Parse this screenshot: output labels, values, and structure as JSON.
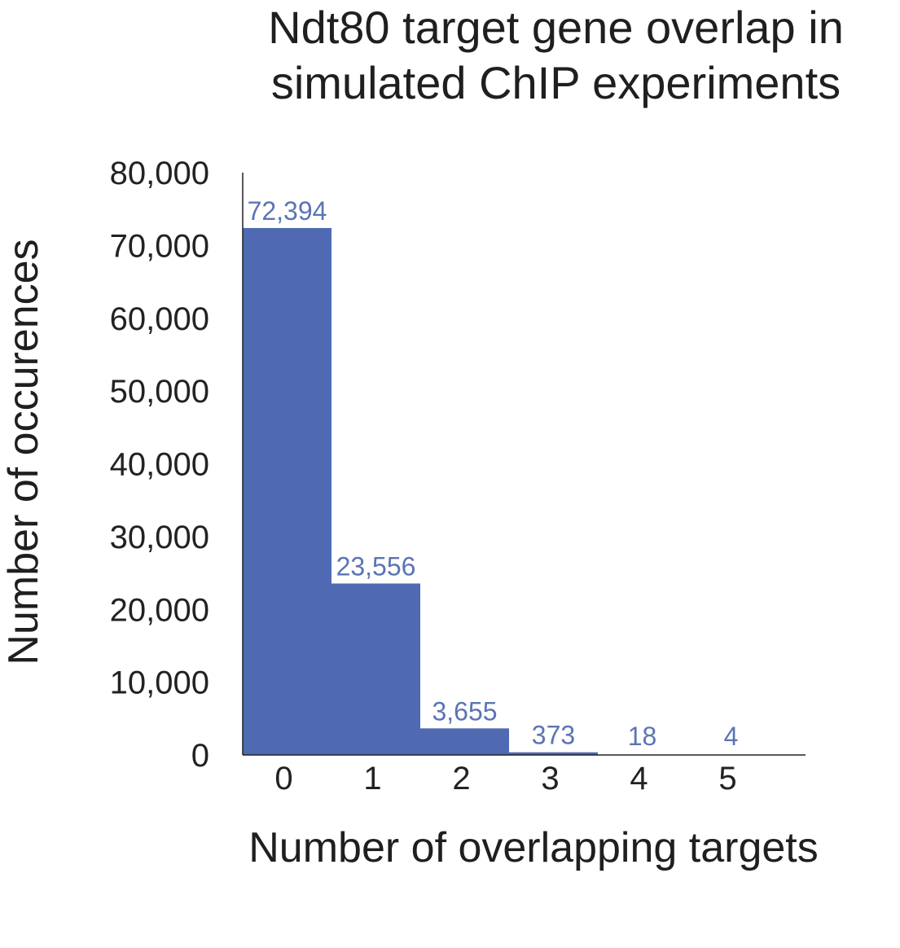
{
  "chart_data": {
    "type": "bar",
    "title": [
      "Ndt80 target gene overlap in",
      "simulated ChIP experiments"
    ],
    "xlabel": "Number of overlapping targets",
    "ylabel": "Number of occurences",
    "categories": [
      "0",
      "1",
      "2",
      "3",
      "4",
      "5"
    ],
    "values": [
      72394,
      23556,
      3655,
      373,
      18,
      4
    ],
    "value_labels": [
      "72,394",
      "23,556",
      "3,655",
      "373",
      "18",
      "4"
    ],
    "ylim": [
      0,
      80000
    ],
    "yticks": [
      0,
      10000,
      20000,
      30000,
      40000,
      50000,
      60000,
      70000,
      80000
    ],
    "ytick_labels": [
      "0",
      "10,000",
      "20,000",
      "30,000",
      "40,000",
      "50,000",
      "60,000",
      "70,000",
      "80,000"
    ],
    "bar_color": "#4f6ab3",
    "label_color": "#5b74b5",
    "grid": false,
    "legend": "none"
  }
}
